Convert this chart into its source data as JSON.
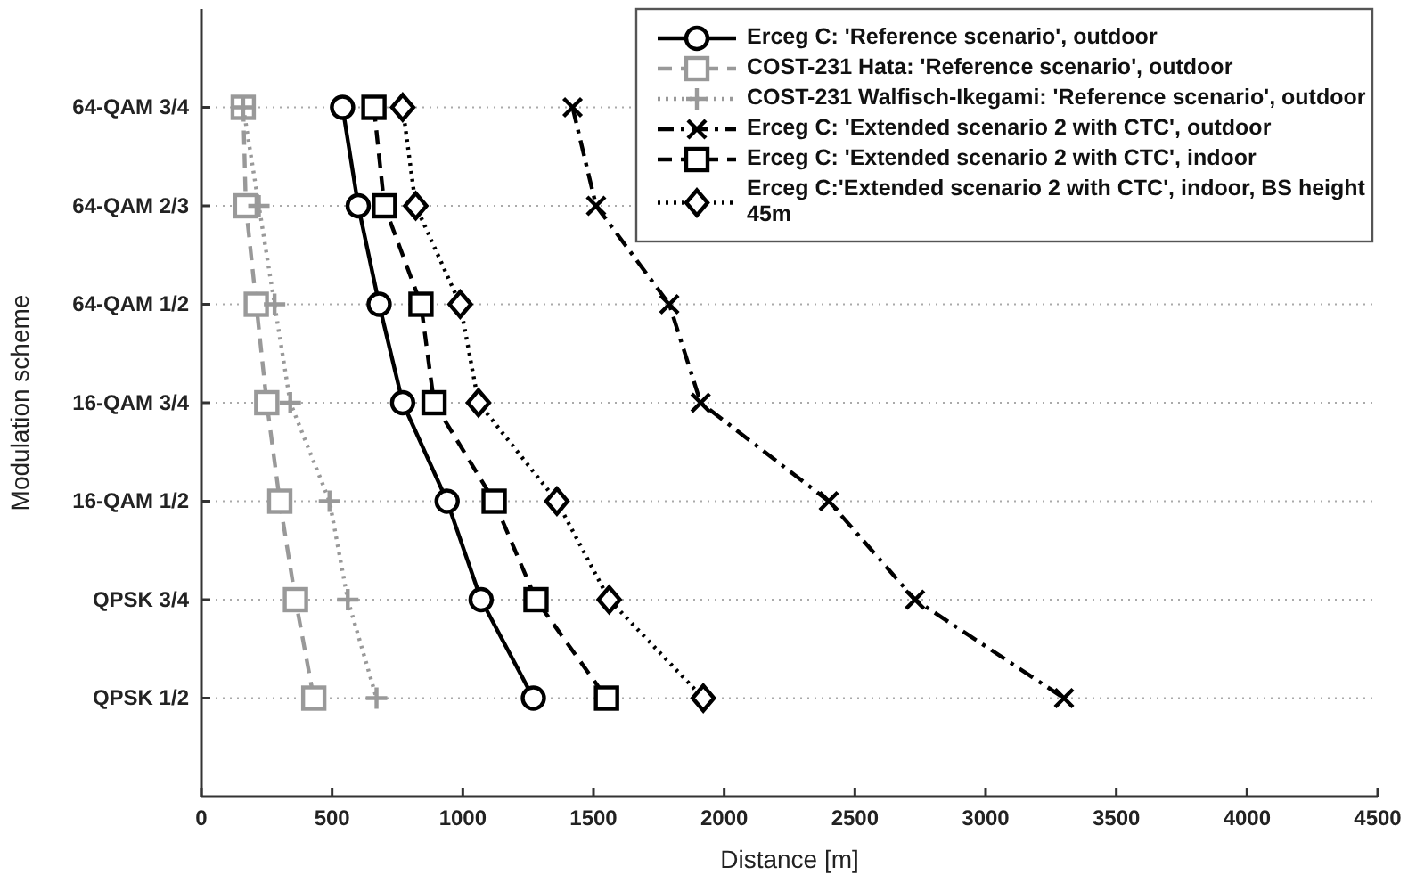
{
  "chart_data": {
    "type": "line",
    "xlabel": "Distance [m]",
    "ylabel": "Modulation scheme",
    "orientation": "horizontal",
    "categories": [
      "64-QAM 3/4",
      "64-QAM 2/3",
      "64-QAM 1/2",
      "16-QAM 3/4",
      "16-QAM 1/2",
      "QPSK 3/4",
      "QPSK 1/2"
    ],
    "xlim": [
      0,
      4500
    ],
    "xticks": [
      0,
      500,
      1000,
      1500,
      2000,
      2500,
      3000,
      3500,
      4000,
      4500
    ],
    "grid": "y",
    "legend": "top right",
    "series": [
      {
        "name": "Erceg C: 'Reference scenario', outdoor",
        "color": "#000000",
        "marker": "circle",
        "line_style": "solid",
        "values": [
          540,
          600,
          680,
          770,
          940,
          1070,
          1270
        ]
      },
      {
        "name": "COST-231 Hata: 'Reference scenario', outdoor",
        "color": "#999999",
        "marker": "square",
        "line_style": "dashed",
        "values": [
          160,
          170,
          210,
          250,
          300,
          360,
          430
        ]
      },
      {
        "name": "COST-231 Walfisch-Ikegami: 'Reference scenario', outdoor",
        "color": "#999999",
        "marker": "plus",
        "line_style": "dotted",
        "values": [
          160,
          220,
          280,
          340,
          490,
          560,
          670
        ]
      },
      {
        "name": "Erceg C: 'Extended scenario 2 with CTC', outdoor",
        "color": "#000000",
        "marker": "cross",
        "line_style": "dashdot",
        "values": [
          1420,
          1510,
          1790,
          1910,
          2400,
          2730,
          3300
        ]
      },
      {
        "name": "Erceg C: 'Extended scenario 2 with CTC', indoor",
        "color": "#000000",
        "marker": "square",
        "line_style": "dashed",
        "values": [
          660,
          700,
          840,
          890,
          1120,
          1280,
          1550
        ]
      },
      {
        "name": "Erceg C:'Extended scenario 2 with CTC', indoor, BS height 45m",
        "color": "#000000",
        "marker": "diamond",
        "line_style": "dotted",
        "values": [
          770,
          820,
          990,
          1060,
          1360,
          1560,
          1920
        ]
      }
    ]
  }
}
